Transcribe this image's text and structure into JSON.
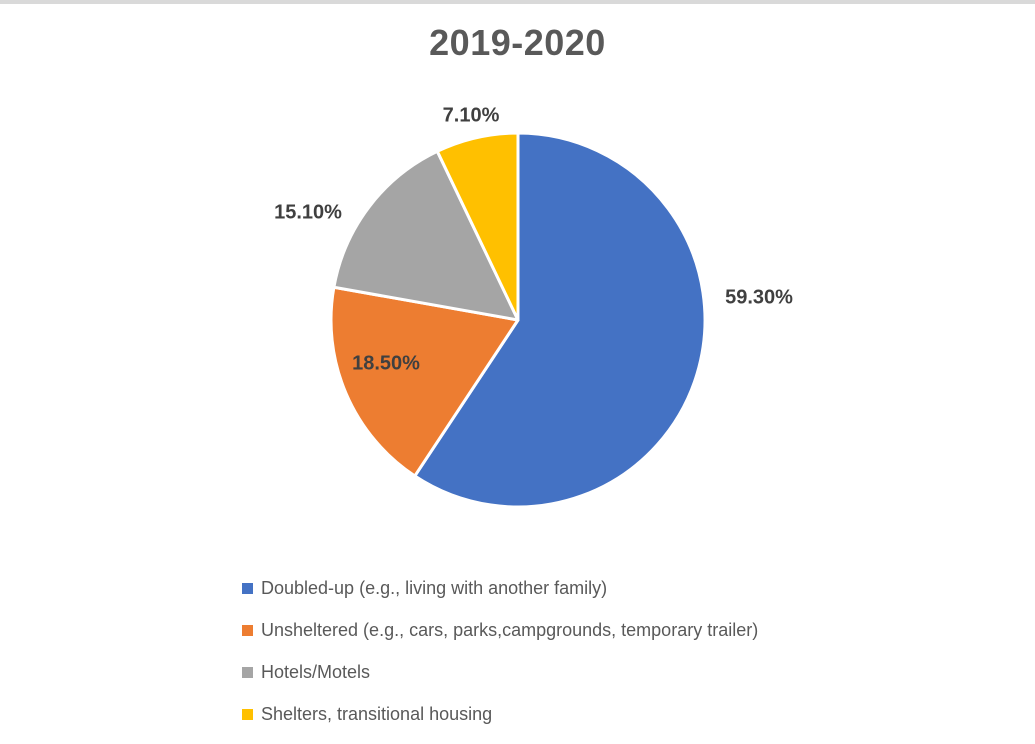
{
  "window": {
    "top_strip_color": "#d9d9d9",
    "background_color": "#ffffff"
  },
  "chart_data": {
    "type": "pie",
    "title": "2019-2020",
    "categories": [
      "Doubled-up (e.g., living with another family)",
      "Unsheltered (e.g., cars, parks,campgrounds, temporary trailer)",
      "Hotels/Motels",
      "Shelters, transitional housing"
    ],
    "values": [
      59.3,
      18.5,
      15.1,
      7.1
    ],
    "data_labels": [
      "59.30%",
      "18.50%",
      "15.10%",
      "7.10%"
    ],
    "colors": [
      "#4472C4",
      "#ED7D31",
      "#A5A5A5",
      "#FFC000"
    ],
    "start_angle_deg": 0,
    "direction": "clockwise",
    "slice_border_color": "#FFFFFF",
    "legend_position": "bottom-left",
    "title_color": "#595959",
    "data_label_color": "#404040",
    "legend_text_color": "#595959"
  }
}
